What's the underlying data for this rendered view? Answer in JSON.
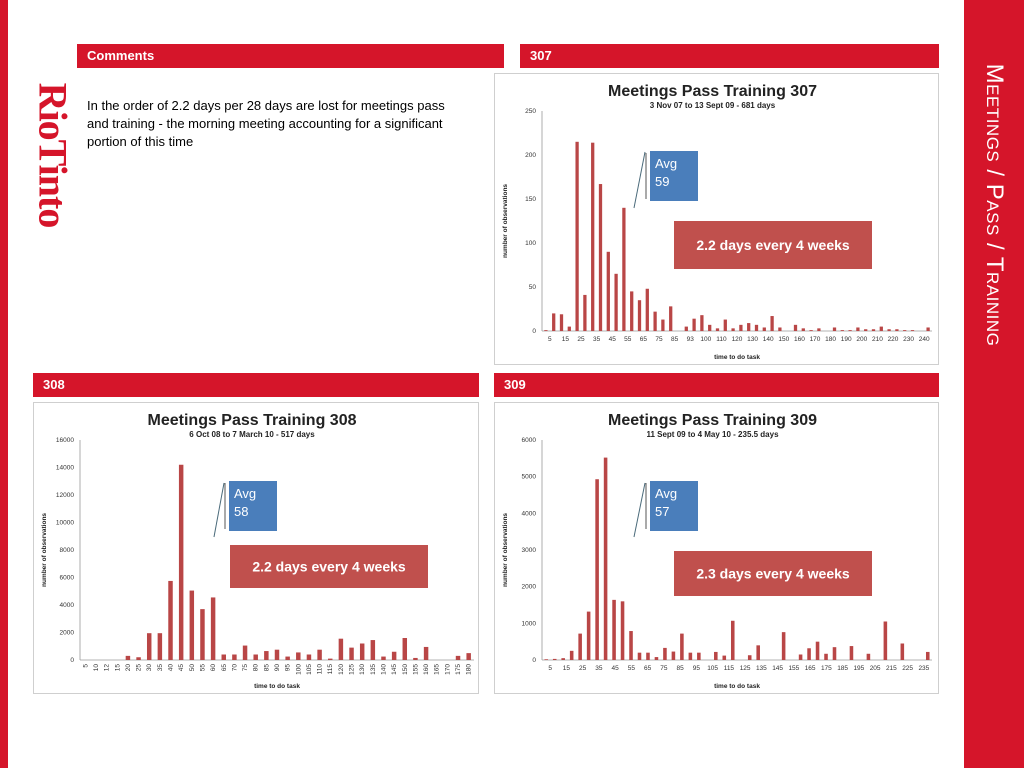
{
  "colors": {
    "red": "#D5152A",
    "bar": "#B94646",
    "avg_box": "#4A7EBB",
    "days_box": "#C0504D"
  },
  "slide": {
    "side_title": "Meetings / Pass / Training",
    "logo": "RioTinto"
  },
  "comments": {
    "header": "Comments",
    "text": "In the order of 2.2 days per 28 days are lost for meetings pass and training -  the morning meeting accounting for a significant portion of this time"
  },
  "chart_data": [
    {
      "type": "bar",
      "header": "307",
      "title": "Meetings Pass Training 307",
      "subtitle": "3 Nov 07 to 13 Sept 09 - 681 days",
      "xlabel": "time to do task",
      "ylabel": "number of observations",
      "ylim": [
        0,
        250
      ],
      "yticks": [
        "0",
        "50",
        "100",
        "150",
        "200",
        "250"
      ],
      "tick_labels": [
        "5",
        "15",
        "25",
        "35",
        "45",
        "55",
        "65",
        "75",
        "85",
        "93",
        "100",
        "110",
        "120",
        "130",
        "140",
        "150",
        "160",
        "170",
        "180",
        "190",
        "200",
        "210",
        "220",
        "230",
        "240"
      ],
      "tick_rotation": 0,
      "values": [
        1,
        20,
        19,
        5,
        215,
        41,
        214,
        167,
        90,
        65,
        140,
        45,
        35,
        48,
        22,
        13,
        28,
        0,
        5,
        14,
        18,
        7,
        3,
        13,
        3,
        7,
        9,
        7,
        4,
        17,
        4,
        0,
        7,
        3,
        1,
        3,
        0,
        4,
        1,
        1,
        4,
        2,
        2,
        5,
        2,
        2,
        1,
        1,
        0,
        4
      ],
      "avg_label": "Avg\n59",
      "days_label": "2.2 days every 4 weeks"
    },
    {
      "type": "bar",
      "header": "308",
      "title": "Meetings Pass Training 308",
      "subtitle": "6 Oct 08 to  7 March 10 - 517 days",
      "xlabel": "time to do task",
      "ylabel": "number of observations",
      "ylim": [
        0,
        16000
      ],
      "yticks": [
        "0",
        "2000",
        "4000",
        "6000",
        "8000",
        "10000",
        "12000",
        "14000",
        "16000"
      ],
      "tick_labels": [
        "5",
        "10",
        "12",
        "15",
        "20",
        "25",
        "30",
        "35",
        "40",
        "45",
        "50",
        "55",
        "60",
        "65",
        "70",
        "75",
        "80",
        "85",
        "90",
        "95",
        "100",
        "105",
        "110",
        "115",
        "120",
        "125",
        "130",
        "135",
        "140",
        "145",
        "150",
        "155",
        "160",
        "165",
        "170",
        "175",
        "180"
      ],
      "tick_rotation": -90,
      "values": [
        0,
        0,
        0,
        0,
        300,
        200,
        1950,
        1950,
        5750,
        14200,
        5050,
        3700,
        4550,
        400,
        400,
        1050,
        400,
        650,
        750,
        250,
        550,
        400,
        750,
        100,
        1550,
        900,
        1200,
        1450,
        250,
        600,
        1600,
        150,
        950,
        0,
        0,
        300,
        500
      ],
      "avg_label": "Avg\n58",
      "days_label": "2.2 days every 4 weeks"
    },
    {
      "type": "bar",
      "header": "309",
      "title": "Meetings Pass Training 309",
      "subtitle": "11 Sept 09 to 4 May 10 - 235.5 days",
      "xlabel": "time to do task",
      "ylabel": "number of observations",
      "ylim": [
        0,
        6000
      ],
      "yticks": [
        "0",
        "1000",
        "2000",
        "3000",
        "4000",
        "5000",
        "6000"
      ],
      "tick_labels": [
        "5",
        "15",
        "25",
        "35",
        "45",
        "55",
        "65",
        "75",
        "85",
        "95",
        "105",
        "115",
        "125",
        "135",
        "145",
        "155",
        "165",
        "175",
        "185",
        "195",
        "205",
        "215",
        "225",
        "235"
      ],
      "tick_rotation": 0,
      "values": [
        20,
        30,
        50,
        250,
        720,
        1320,
        4930,
        5520,
        1640,
        1600,
        790,
        200,
        200,
        80,
        330,
        230,
        720,
        200,
        200,
        0,
        220,
        120,
        1070,
        0,
        130,
        400,
        0,
        0,
        760,
        0,
        150,
        320,
        500,
        170,
        350,
        0,
        380,
        0,
        170,
        0,
        1050,
        0,
        450,
        0,
        0,
        220
      ],
      "avg_label": "Avg\n57",
      "days_label": "2.3 days every 4 weeks"
    }
  ]
}
